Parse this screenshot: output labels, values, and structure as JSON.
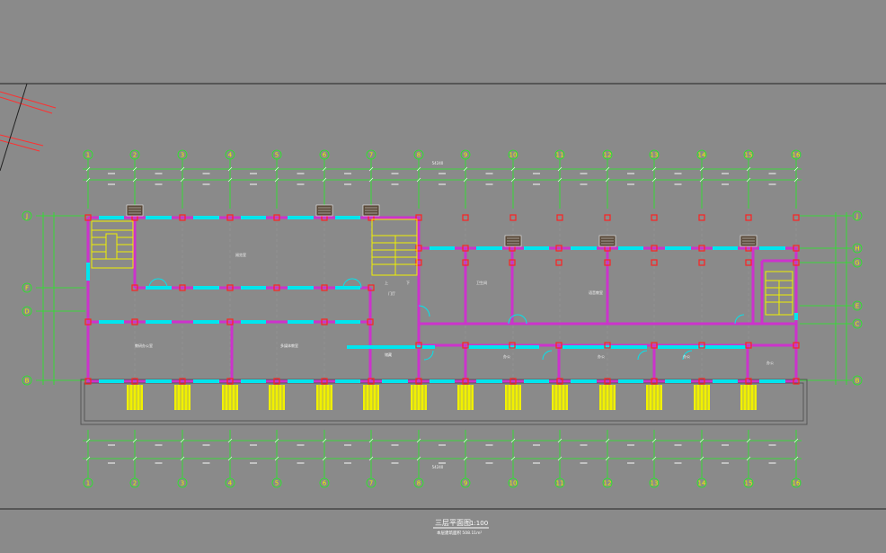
{
  "drawing": {
    "title": "三层平面图",
    "scale": "1:100",
    "area_note": "本层建筑面积 508.11m²",
    "total_dim": "54240"
  },
  "axes": {
    "columns": [
      "1",
      "2",
      "3",
      "4",
      "5",
      "6",
      "7",
      "8",
      "9",
      "10",
      "11",
      "12",
      "13",
      "14",
      "15",
      "16"
    ],
    "rows_left": [
      "J",
      "F",
      "D",
      "B"
    ],
    "rows_right": [
      "J",
      "H",
      "G",
      "E",
      "C",
      "B"
    ]
  },
  "rooms": [
    {
      "id": "r1",
      "label": "阅览室"
    },
    {
      "id": "r2",
      "label": "教研办公室"
    },
    {
      "id": "r3",
      "label": "多媒体教室"
    },
    {
      "id": "r4",
      "label": "语音教室"
    },
    {
      "id": "r5",
      "label": "卫生间"
    },
    {
      "id": "r6",
      "label": "储藏"
    },
    {
      "id": "r7",
      "label": "办公"
    },
    {
      "id": "r8",
      "label": "办公"
    },
    {
      "id": "r9",
      "label": "办公"
    },
    {
      "id": "r10",
      "label": "办公"
    },
    {
      "id": "r11",
      "label": "门厅"
    },
    {
      "id": "r12",
      "label": "上"
    },
    {
      "id": "r13",
      "label": "下"
    }
  ],
  "colors": {
    "background": "#8a8a8a",
    "wall": "#cc33cc",
    "window": "#00e5ee",
    "grid": "#22ee22",
    "column": "#ff2222",
    "stair": "#f0f000",
    "frame": "#222222"
  }
}
